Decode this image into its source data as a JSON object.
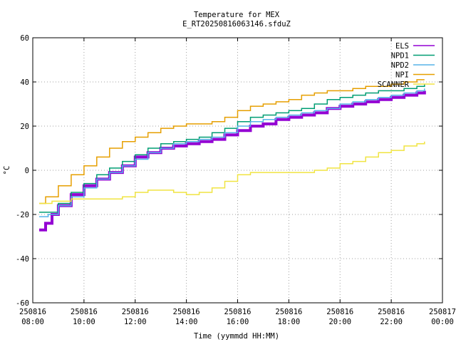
{
  "chart_data": {
    "type": "line",
    "title": "Temperature for MEX",
    "subtitle": "E_RT20250816063146.sfduZ",
    "xlabel": "Time (yymmdd HH:MM)",
    "ylabel": "°C",
    "xlim": [
      "250816 08:00",
      "250817 00:00"
    ],
    "ylim": [
      -60,
      60
    ],
    "yticks": [
      -60,
      -40,
      -20,
      0,
      20,
      40,
      60
    ],
    "xticks": [
      {
        "hour": 8,
        "date": "250816",
        "time": "08:00"
      },
      {
        "hour": 10,
        "date": "250816",
        "time": "10:00"
      },
      {
        "hour": 12,
        "date": "250816",
        "time": "12:00"
      },
      {
        "hour": 14,
        "date": "250816",
        "time": "14:00"
      },
      {
        "hour": 16,
        "date": "250816",
        "time": "16:00"
      },
      {
        "hour": 18,
        "date": "250816",
        "time": "18:00"
      },
      {
        "hour": 20,
        "date": "250816",
        "time": "20:00"
      },
      {
        "hour": 22,
        "date": "250816",
        "time": "22:00"
      },
      {
        "hour": 24,
        "date": "250817",
        "time": "00:00"
      }
    ],
    "grid": true,
    "legend_position": "top-right",
    "series": [
      {
        "name": "ELS",
        "color": "#9400d3",
        "width": 4,
        "x": [
          8.25,
          8.5,
          8.75,
          9.0,
          9.5,
          10.0,
          10.5,
          11.0,
          11.5,
          12.0,
          12.5,
          13.0,
          13.5,
          14.0,
          14.5,
          15.0,
          15.5,
          16.0,
          16.5,
          17.0,
          17.5,
          18.0,
          18.5,
          19.0,
          19.5,
          20.0,
          20.5,
          21.0,
          21.5,
          22.0,
          22.5,
          23.0,
          23.3
        ],
        "y": [
          -27,
          -24,
          -20,
          -16,
          -11,
          -7,
          -4,
          -1,
          2,
          6,
          8,
          10,
          11,
          12,
          13,
          14,
          16,
          18,
          20,
          21,
          23,
          24,
          25,
          26,
          28,
          29,
          30,
          31,
          32,
          33,
          34,
          35,
          36
        ]
      },
      {
        "name": "NPD1",
        "color": "#009e73",
        "width": 1.5,
        "x": [
          8.25,
          8.6,
          9.0,
          9.5,
          10.0,
          10.5,
          11.0,
          11.5,
          12.0,
          12.5,
          13.0,
          13.5,
          14.0,
          14.5,
          15.0,
          15.5,
          16.0,
          16.5,
          17.0,
          17.5,
          18.0,
          18.5,
          19.0,
          19.5,
          20.0,
          20.5,
          21.0,
          21.5,
          22.0,
          22.5,
          23.0,
          23.3
        ],
        "y": [
          -19,
          -19,
          -15,
          -10,
          -6,
          -2,
          1,
          4,
          7,
          10,
          12,
          13,
          14,
          15,
          17,
          19,
          22,
          24,
          25,
          26,
          27,
          28,
          30,
          32,
          33,
          34,
          35,
          36,
          36,
          37,
          38,
          39
        ]
      },
      {
        "name": "NPD2",
        "color": "#56b4e9",
        "width": 1.5,
        "x": [
          8.25,
          8.6,
          9.0,
          9.5,
          10.0,
          10.5,
          11.0,
          11.5,
          12.0,
          12.5,
          13.0,
          13.5,
          14.0,
          14.5,
          15.0,
          15.5,
          16.0,
          16.5,
          17.0,
          17.5,
          18.0,
          18.5,
          19.0,
          19.5,
          20.0,
          20.5,
          21.0,
          21.5,
          22.0,
          22.5,
          23.0,
          23.3
        ],
        "y": [
          -21,
          -20,
          -16,
          -12,
          -8,
          -4,
          -1,
          2,
          5,
          8,
          10,
          12,
          13,
          14,
          15,
          17,
          20,
          22,
          23,
          24,
          25,
          26,
          27,
          28,
          30,
          31,
          32,
          33,
          34,
          35,
          36,
          37
        ]
      },
      {
        "name": "NPI",
        "color": "#e69f00",
        "width": 1.5,
        "x": [
          8.25,
          8.5,
          9.0,
          9.5,
          10.0,
          10.5,
          11.0,
          11.5,
          12.0,
          12.5,
          13.0,
          13.5,
          14.0,
          14.5,
          15.0,
          15.5,
          16.0,
          16.5,
          17.0,
          17.5,
          18.0,
          18.5,
          19.0,
          19.5,
          20.0,
          20.5,
          21.0,
          21.5,
          22.0,
          22.5,
          23.0,
          23.3
        ],
        "y": [
          -15,
          -12,
          -7,
          -2,
          2,
          6,
          10,
          13,
          15,
          17,
          19,
          20,
          21,
          21,
          22,
          24,
          27,
          29,
          30,
          31,
          32,
          34,
          35,
          36,
          36,
          37,
          38,
          38,
          39,
          40,
          41,
          41
        ]
      },
      {
        "name": "SCANNER",
        "color": "#f0e442",
        "width": 1.5,
        "x": [
          8.25,
          8.75,
          9.0,
          9.5,
          10.0,
          10.5,
          11.0,
          11.5,
          12.0,
          12.5,
          13.0,
          13.5,
          14.0,
          14.5,
          15.0,
          15.5,
          16.0,
          16.5,
          17.0,
          17.5,
          18.0,
          18.5,
          19.0,
          19.5,
          20.0,
          20.5,
          21.0,
          21.5,
          22.0,
          22.5,
          23.0,
          23.3
        ],
        "y": [
          -15,
          -14,
          -14,
          -13,
          -13,
          -13,
          -13,
          -12,
          -10,
          -9,
          -9,
          -10,
          -11,
          -10,
          -8,
          -5,
          -2,
          -1,
          -1,
          -1,
          -1,
          -1,
          0,
          1,
          3,
          4,
          6,
          8,
          9,
          11,
          12,
          13
        ]
      }
    ]
  }
}
